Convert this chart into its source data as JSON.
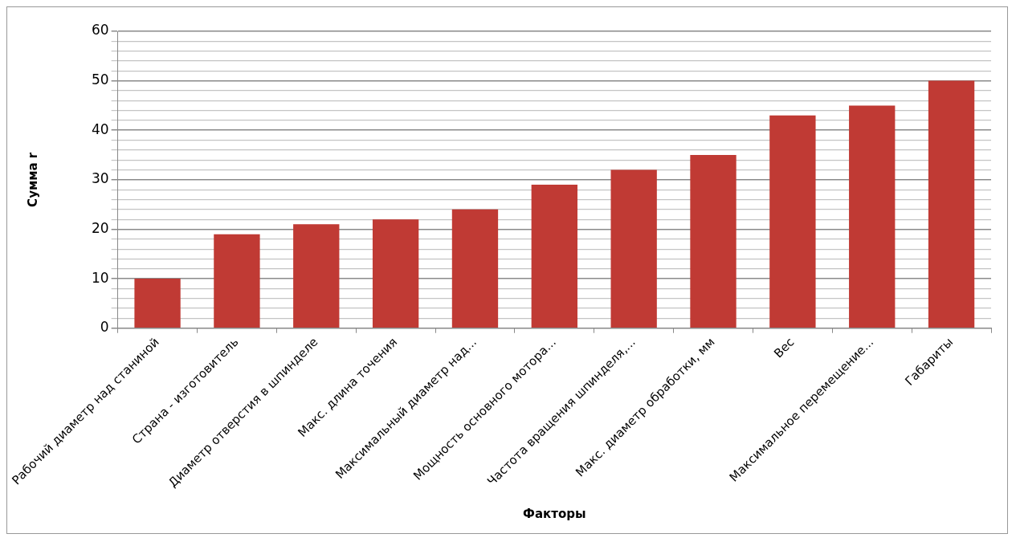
{
  "chart_data": {
    "type": "bar",
    "xlabel": "Факторы",
    "ylabel": "Сумма r",
    "categories": [
      "Рабочий диаметр над станиной",
      "Страна - изготовитель",
      "Диаметр отверстия в шпинделе",
      "Макс. длина точения",
      "Максимальный диаметр над...",
      "Мощность основного мотора...",
      "Частота вращения шпинделя,...",
      "Макс. диаметр обработки, мм",
      "Вес",
      "Максимальное перемещение...",
      "Габариты"
    ],
    "values": [
      10,
      19,
      21,
      22,
      24,
      29,
      32,
      35,
      43,
      45,
      50
    ],
    "color": "#c03a34",
    "ylim": [
      0,
      60
    ],
    "yticks": [
      0,
      {
        "value": 2,
        "label": null
      },
      {
        "value": 4,
        "label": null
      },
      {
        "value": 6,
        "label": null
      },
      {
        "value": 8,
        "label": null
      },
      10,
      {
        "value": 12,
        "label": null
      },
      {
        "value": 14,
        "label": null
      },
      {
        "value": 16,
        "label": null
      },
      {
        "value": 18,
        "label": null
      },
      20,
      {
        "value": 22,
        "label": null
      },
      {
        "value": 24,
        "label": null
      },
      {
        "value": 26,
        "label": null
      },
      {
        "value": 28,
        "label": null
      },
      30,
      {
        "value": 32,
        "label": null
      },
      {
        "value": 34,
        "label": null
      },
      {
        "value": 36,
        "label": null
      },
      {
        "value": 38,
        "label": null
      },
      40,
      {
        "value": 42,
        "label": null
      },
      {
        "value": 44,
        "label": null
      },
      {
        "value": 46,
        "label": null
      },
      {
        "value": 48,
        "label": null
      },
      50,
      {
        "value": 52,
        "label": null
      },
      {
        "value": 54,
        "label": null
      },
      {
        "value": 56,
        "label": null
      },
      {
        "value": 58,
        "label": null
      },
      60
    ],
    "grid": true,
    "legend": false
  }
}
